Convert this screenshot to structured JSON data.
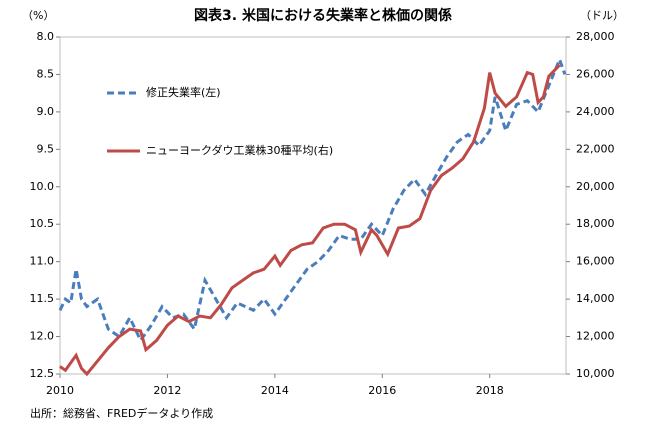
{
  "chart_data": {
    "type": "line",
    "title": "図表3. 米国における失業率と株価の関係",
    "y_unit": "（%）",
    "y2_unit": "（ドル）",
    "note": "出所：総務省、FREDデータより作成",
    "xlim": [
      2010,
      2019.42
    ],
    "xticks": [
      2010,
      2012,
      2014,
      2016,
      2018
    ],
    "ylim": [
      12.5,
      8.0
    ],
    "yticks": [
      {
        "value": 8.0,
        "label": "8.0"
      },
      8.5,
      {
        "value": 9.0,
        "label": "9.0"
      },
      9.5,
      {
        "value": 10.0,
        "label": "10.0"
      },
      10.5,
      {
        "value": 11.0,
        "label": "11.0"
      },
      11.5,
      {
        "value": 12.0,
        "label": "12.0"
      },
      12.5
    ],
    "y2lim": [
      10000,
      28000
    ],
    "y2ticks": [
      {
        "value": 10000,
        "label": "10,000"
      },
      {
        "value": 12000,
        "label": "12,000"
      },
      {
        "value": 14000,
        "label": "14,000"
      },
      {
        "value": 16000,
        "label": "16,000"
      },
      {
        "value": 18000,
        "label": "18,000"
      },
      {
        "value": 20000,
        "label": "20,000"
      },
      {
        "value": 22000,
        "label": "22,000"
      },
      {
        "value": 24000,
        "label": "24,000"
      },
      {
        "value": 26000,
        "label": "26,000"
      },
      {
        "value": 28000,
        "label": "28,000"
      }
    ],
    "legend": "upper-left",
    "series": [
      {
        "name": "修正失業率(左)",
        "color": "#4a7ebb",
        "dashed": true,
        "x": [
          2010.0,
          2010.1,
          2010.2,
          2010.3,
          2010.4,
          2010.5,
          2010.7,
          2010.9,
          2011.1,
          2011.3,
          2011.5,
          2011.7,
          2011.9,
          2012.1,
          2012.3,
          2012.5,
          2012.7,
          2012.9,
          2013.1,
          2013.3,
          2013.6,
          2013.8,
          2014.0,
          2014.2,
          2014.4,
          2014.6,
          2014.8,
          2015.0,
          2015.2,
          2015.4,
          2015.6,
          2015.8,
          2016.0,
          2016.2,
          2016.4,
          2016.6,
          2016.8,
          2017.0,
          2017.2,
          2017.4,
          2017.6,
          2017.8,
          2018.0,
          2018.1,
          2018.3,
          2018.5,
          2018.7,
          2018.9,
          2019.1,
          2019.3,
          2019.4
        ],
        "values": [
          11.65,
          11.5,
          11.55,
          11.1,
          11.5,
          11.6,
          11.5,
          11.9,
          12.0,
          11.75,
          12.05,
          11.85,
          11.6,
          11.75,
          11.7,
          11.9,
          11.25,
          11.5,
          11.75,
          11.55,
          11.65,
          11.5,
          11.7,
          11.5,
          11.3,
          11.1,
          11.0,
          10.85,
          10.65,
          10.7,
          10.7,
          10.5,
          10.65,
          10.3,
          10.05,
          9.9,
          10.1,
          9.85,
          9.6,
          9.4,
          9.3,
          9.45,
          9.25,
          8.8,
          9.25,
          8.9,
          8.85,
          9.0,
          8.65,
          8.3,
          8.5
        ]
      },
      {
        "name": "ニューヨークダウ工業株30種平均(右)",
        "color": "#be4b48",
        "dashed": false,
        "axis": "y2",
        "x": [
          2010.0,
          2010.1,
          2010.3,
          2010.4,
          2010.5,
          2010.7,
          2010.9,
          2011.1,
          2011.3,
          2011.5,
          2011.6,
          2011.8,
          2012.0,
          2012.2,
          2012.4,
          2012.6,
          2012.8,
          2013.0,
          2013.2,
          2013.4,
          2013.6,
          2013.8,
          2014.0,
          2014.1,
          2014.3,
          2014.5,
          2014.7,
          2014.9,
          2015.1,
          2015.3,
          2015.5,
          2015.6,
          2015.8,
          2015.9,
          2016.1,
          2016.3,
          2016.5,
          2016.7,
          2016.9,
          2017.1,
          2017.3,
          2017.5,
          2017.7,
          2017.9,
          2018.0,
          2018.1,
          2018.3,
          2018.5,
          2018.7,
          2018.8,
          2018.9,
          2019.0,
          2019.1,
          2019.3
        ],
        "values": [
          10400,
          10200,
          11000,
          10300,
          10000,
          10700,
          11400,
          12000,
          12400,
          12300,
          11300,
          11800,
          12600,
          13100,
          12800,
          13100,
          13000,
          13700,
          14600,
          15000,
          15400,
          15600,
          16300,
          15800,
          16600,
          16900,
          17000,
          17800,
          18000,
          18000,
          17700,
          16500,
          17700,
          17400,
          16400,
          17800,
          17900,
          18300,
          19800,
          20600,
          21000,
          21500,
          22400,
          24200,
          26100,
          25000,
          24300,
          24800,
          26100,
          26000,
          24500,
          24800,
          25900,
          26500
        ]
      }
    ]
  }
}
